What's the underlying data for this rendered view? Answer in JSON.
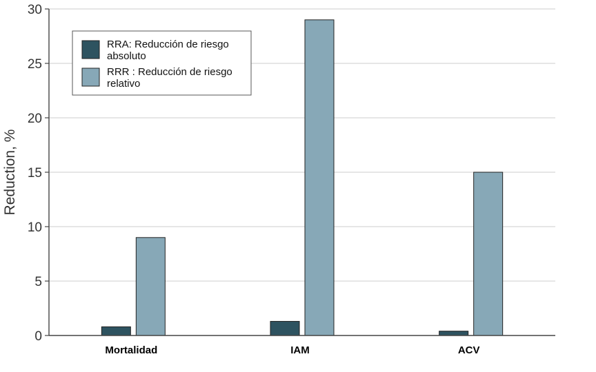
{
  "chart_data": {
    "type": "bar",
    "categories": [
      "Mortalidad",
      "IAM",
      "ACV"
    ],
    "series": [
      {
        "name": "RRA: Reducción de riesgo absoluto",
        "legend_lines": [
          "RRA: Reducción de riesgo",
          "absoluto"
        ],
        "values": [
          0.8,
          1.3,
          0.4
        ],
        "color": "#2e5360"
      },
      {
        "name": "RRR : Reducción de riesgo relativo",
        "legend_lines": [
          "RRR : Reducción de riesgo",
          "relativo"
        ],
        "values": [
          9,
          29,
          15
        ],
        "color": "#87a8b7"
      }
    ],
    "ylabel": "Reduction, %",
    "xlabel": "",
    "ylim": [
      0,
      30
    ],
    "yticks": [
      0,
      5,
      10,
      15,
      20,
      25,
      30
    ],
    "grid": true,
    "legend_position": "top-left"
  }
}
